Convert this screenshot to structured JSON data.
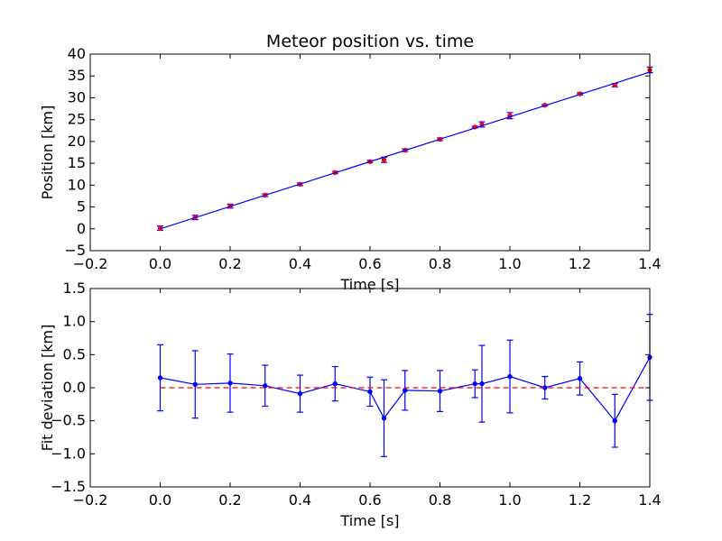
{
  "chart_data": [
    {
      "type": "line",
      "title": "Meteor position vs. time",
      "xlabel": "Time [s]",
      "ylabel": "Position [km]",
      "xlim": [
        -0.2,
        1.4
      ],
      "ylim": [
        -5,
        40
      ],
      "xticks": [
        "−0.2",
        "0.0",
        "0.2",
        "0.4",
        "0.6",
        "0.8",
        "1.0",
        "1.2",
        "1.4"
      ],
      "yticks": [
        "−5",
        "0",
        "5",
        "10",
        "15",
        "20",
        "25",
        "30",
        "35",
        "40"
      ],
      "grid": false,
      "series": [
        {
          "style": "errorbar-points",
          "color": "#ff0000",
          "errcolor": "#0000ff",
          "x": [
            0.0,
            0.1,
            0.2,
            0.3,
            0.4,
            0.5,
            0.6,
            0.64,
            0.7,
            0.8,
            0.9,
            0.92,
            1.0,
            1.1,
            1.2,
            1.3,
            1.4
          ],
          "y": [
            0.15,
            2.6,
            5.2,
            7.7,
            10.2,
            12.9,
            15.4,
            15.8,
            18.0,
            20.5,
            23.3,
            23.9,
            25.9,
            28.3,
            30.9,
            32.9,
            36.4
          ],
          "yerr": [
            0.5,
            0.5,
            0.45,
            0.3,
            0.3,
            0.25,
            0.25,
            0.6,
            0.3,
            0.3,
            0.2,
            0.6,
            0.7,
            0.15,
            0.25,
            0.4,
            0.65
          ]
        },
        {
          "style": "line",
          "color": "#0000ff",
          "x": [
            0.0,
            1.4
          ],
          "y": [
            0.0,
            35.9
          ]
        }
      ]
    },
    {
      "type": "line",
      "title": "",
      "xlabel": "Time [s]",
      "ylabel": "Fit deviation [km]",
      "xlim": [
        -0.2,
        1.4
      ],
      "ylim": [
        -1.5,
        1.5
      ],
      "xticks": [
        "−0.2",
        "0.0",
        "0.2",
        "0.4",
        "0.6",
        "0.8",
        "1.0",
        "1.2",
        "1.4"
      ],
      "yticks": [
        "−1.5",
        "−1.0",
        "−0.5",
        "0.0",
        "0.5",
        "1.0",
        "1.5"
      ],
      "grid": false,
      "series": [
        {
          "style": "errorbar-line",
          "color": "#0000ff",
          "x": [
            0.0,
            0.1,
            0.2,
            0.3,
            0.4,
            0.5,
            0.6,
            0.64,
            0.7,
            0.8,
            0.9,
            0.92,
            1.0,
            1.1,
            1.2,
            1.3,
            1.4
          ],
          "y": [
            0.15,
            0.05,
            0.07,
            0.03,
            -0.09,
            0.06,
            -0.06,
            -0.46,
            -0.04,
            -0.05,
            0.06,
            0.06,
            0.17,
            0.0,
            0.14,
            -0.5,
            0.46
          ],
          "yerr": [
            0.5,
            0.51,
            0.44,
            0.31,
            0.28,
            0.26,
            0.22,
            0.58,
            0.3,
            0.31,
            0.21,
            0.58,
            0.55,
            0.17,
            0.25,
            0.4,
            0.65
          ]
        },
        {
          "style": "dashed",
          "color": "#ff0000",
          "x": [
            0.0,
            1.4
          ],
          "y": [
            0.0,
            0.0
          ]
        }
      ]
    }
  ]
}
